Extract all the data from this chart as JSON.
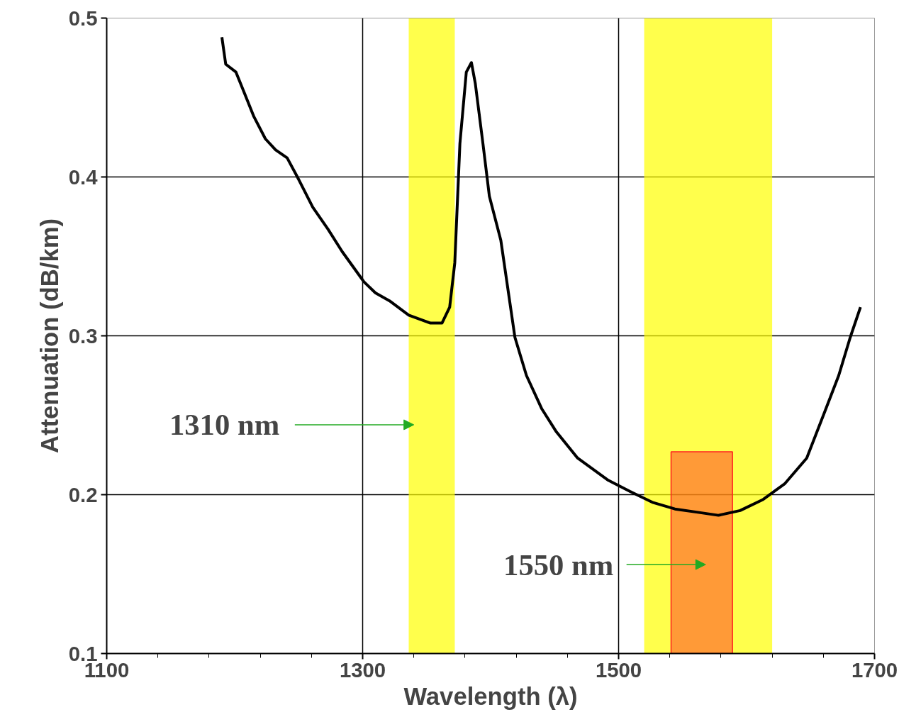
{
  "chart_data": {
    "type": "line",
    "xlabel": "Wavelength (λ)",
    "ylabel": "Attenuation (dB/km)",
    "xlim": [
      1100,
      1700
    ],
    "xticks": [
      1100,
      1300,
      1500,
      1700
    ],
    "ylim": [
      0.1,
      0.5
    ],
    "yticks": [
      0.1,
      0.2,
      0.3,
      0.4,
      0.5
    ],
    "grid": true,
    "series": [
      {
        "color": "#000000",
        "x": [
          1190,
          1193,
          1201,
          1207,
          1215,
          1224,
          1232,
          1241,
          1249,
          1261,
          1273,
          1284,
          1301,
          1310,
          1321,
          1336,
          1353,
          1362,
          1368,
          1372,
          1376,
          1381,
          1385,
          1388,
          1394,
          1399,
          1408,
          1419,
          1428,
          1440,
          1451,
          1468,
          1492,
          1509,
          1527,
          1544,
          1561,
          1578,
          1595,
          1613,
          1630,
          1647,
          1661,
          1672,
          1681,
          1689
        ],
        "values": [
          0.488,
          0.471,
          0.466,
          0.454,
          0.438,
          0.424,
          0.417,
          0.412,
          0.4,
          0.381,
          0.367,
          0.353,
          0.334,
          0.327,
          0.322,
          0.313,
          0.308,
          0.308,
          0.318,
          0.346,
          0.421,
          0.466,
          0.472,
          0.459,
          0.421,
          0.388,
          0.36,
          0.299,
          0.275,
          0.254,
          0.24,
          0.223,
          0.209,
          0.202,
          0.195,
          0.191,
          0.189,
          0.187,
          0.19,
          0.197,
          0.207,
          0.223,
          0.252,
          0.275,
          0.299,
          0.318
        ]
      },
      {
        "type": "bar",
        "color": "#ff2020",
        "x": [
          1565
        ],
        "values": [
          0.227
        ]
      }
    ],
    "bands": [
      {
        "axis": "x",
        "from": 1336,
        "to": 1372,
        "color": "#ffff00"
      },
      {
        "axis": "x",
        "from": 1520,
        "to": 1620,
        "color": "#ffff00"
      }
    ],
    "annotations": [
      "1310 nm",
      "1550 nm"
    ]
  }
}
